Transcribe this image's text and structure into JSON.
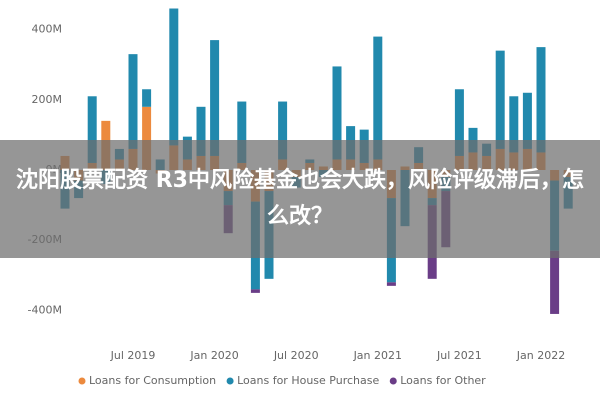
{
  "chart_data": {
    "type": "bar",
    "stacked": true,
    "banner": "沈阳股票配资 R3中风险基金也会大跌，风险评级滞后，怎么改？",
    "categories": [
      null,
      null,
      null,
      null,
      null,
      "Jul 2019",
      null,
      null,
      null,
      null,
      null,
      "Jan 2020",
      null,
      null,
      null,
      null,
      null,
      "Jul 2020",
      null,
      null,
      null,
      null,
      null,
      "Jan 2021",
      null,
      null,
      null,
      null,
      null,
      "Jul 2021",
      null,
      null,
      null,
      null,
      null,
      "Jan 2022",
      null,
      null
    ],
    "series": [
      {
        "name": "Loans for Consumption",
        "color": "#ec8a3e",
        "values": [
          40,
          -30,
          20,
          140,
          30,
          60,
          180,
          -10,
          70,
          30,
          40,
          40,
          -60,
          20,
          -90,
          -60,
          30,
          -20,
          20,
          10,
          30,
          30,
          20,
          30,
          -80,
          10,
          20,
          -80,
          -20,
          40,
          50,
          40,
          60,
          50,
          60,
          50,
          -30,
          -20
        ]
      },
      {
        "name": "Loans for House Purchase",
        "color": "#2189ad",
        "values": [
          -110,
          -50,
          190,
          -40,
          30,
          270,
          50,
          30,
          390,
          65,
          140,
          330,
          -40,
          175,
          -250,
          -250,
          165,
          -30,
          10,
          -20,
          265,
          95,
          95,
          350,
          -240,
          -160,
          45,
          -20,
          -40,
          190,
          70,
          35,
          280,
          160,
          160,
          300,
          -200,
          -90
        ]
      },
      {
        "name": "Loans for Other",
        "color": "#6a3d87",
        "values": [
          0,
          0,
          0,
          0,
          0,
          0,
          0,
          0,
          0,
          0,
          0,
          0,
          -80,
          0,
          -10,
          0,
          0,
          0,
          0,
          0,
          0,
          0,
          0,
          0,
          -10,
          0,
          0,
          -210,
          -160,
          0,
          0,
          0,
          0,
          0,
          0,
          0,
          -180,
          0
        ]
      }
    ],
    "ylim": [
      -470,
      470
    ],
    "yticks": [
      {
        "value": -400,
        "label": "-400M"
      },
      {
        "value": -200,
        "label": "-200M"
      },
      {
        "value": 0,
        "label": "0M"
      },
      {
        "value": 200,
        "label": "200M"
      },
      {
        "value": 400,
        "label": "400M"
      }
    ],
    "grid": false
  }
}
